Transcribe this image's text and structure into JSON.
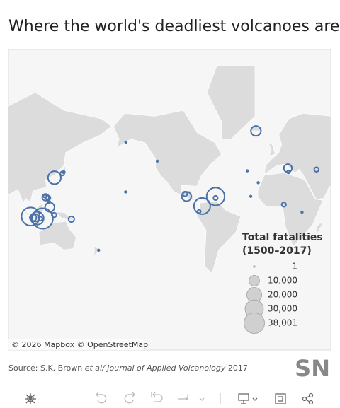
{
  "title": "Where the world's deadliest volcanoes are",
  "map": {
    "attribution": "© 2026 Mapbox © OpenStreetMap",
    "legend": {
      "title_lines": [
        "Total fatalities",
        "(1500–2017)"
      ],
      "entries": [
        1,
        {
          "value": 10000,
          "label": "10,000"
        },
        {
          "value": 20000,
          "label": "20,000"
        },
        {
          "value": 30000,
          "label": "30,000"
        },
        {
          "value": 38001,
          "label": "38,001"
        }
      ]
    },
    "volcanoes": [
      {
        "lon": 118,
        "lat": -8.2,
        "fatalities": 38001
      },
      {
        "lon": 105.4,
        "lat": -6.1,
        "fatalities": 30000
      },
      {
        "lon": 112.3,
        "lat": -7.9,
        "fatalities": 15000
      },
      {
        "lon": 108,
        "lat": -7.3,
        "fatalities": 4000
      },
      {
        "lon": 110.4,
        "lat": -7.5,
        "fatalities": 5000
      },
      {
        "lon": 115.5,
        "lat": -8.3,
        "fatalities": 1500
      },
      {
        "lon": 125.4,
        "lat": 3.7,
        "fatalities": 8000
      },
      {
        "lon": 123.7,
        "lat": 13.3,
        "fatalities": 2000
      },
      {
        "lon": 121,
        "lat": 14,
        "fatalities": 4000
      },
      {
        "lon": 120.3,
        "lat": 15.1,
        "fatalities": 800
      },
      {
        "lon": 124.7,
        "lat": 9.2,
        "fatalities": 500
      },
      {
        "lon": 129.9,
        "lat": -4.5,
        "fatalities": 2000
      },
      {
        "lon": 130.3,
        "lat": 32.8,
        "fatalities": 15000
      },
      {
        "lon": 138.5,
        "lat": 36.4,
        "fatalities": 1500
      },
      {
        "lon": 140,
        "lat": 37.6,
        "fatalities": 500
      },
      {
        "lon": 148,
        "lat": -8.9,
        "fatalities": 3000
      },
      {
        "lon": 176.5,
        "lat": -38.3,
        "fatalities": 150
      },
      {
        "lon": -155.3,
        "lat": 19.4,
        "fatalities": 100
      },
      {
        "lon": -155,
        "lat": 58.3,
        "fatalities": 2
      },
      {
        "lon": -122.2,
        "lat": 46.2,
        "fatalities": 57
      },
      {
        "lon": -93.2,
        "lat": 17.4,
        "fatalities": 2000
      },
      {
        "lon": -91.6,
        "lat": 14.8,
        "fatalities": 8000
      },
      {
        "lon": -61.2,
        "lat": 14.8,
        "fatalities": 29000
      },
      {
        "lon": -61.2,
        "lat": 13.3,
        "fatalities": 1700
      },
      {
        "lon": -75.3,
        "lat": 4.9,
        "fatalities": 24000
      },
      {
        "lon": -78.4,
        "lat": -0.7,
        "fatalities": 1000
      },
      {
        "lon": -19,
        "lat": 64,
        "fatalities": 9000
      },
      {
        "lon": -28,
        "lat": 38.7,
        "fatalities": 80
      },
      {
        "lon": -16.6,
        "lat": 28.3,
        "fatalities": 50
      },
      {
        "lon": -24.4,
        "lat": 14.9,
        "fatalities": 20
      },
      {
        "lon": 14.4,
        "lat": 40.8,
        "fatalities": 6000
      },
      {
        "lon": 15,
        "lat": 37.7,
        "fatalities": 800
      },
      {
        "lon": 44.3,
        "lat": 39.7,
        "fatalities": 1900
      },
      {
        "lon": 10.2,
        "lat": 6.4,
        "fatalities": 1746
      },
      {
        "lon": 29.2,
        "lat": -1.5,
        "fatalities": 200
      }
    ]
  },
  "source": {
    "prefix": "Source: S.K. Brown ",
    "italic": "et al/ Journal of Applied Volcanology",
    "suffix": " 2017"
  },
  "logo": "SN"
}
